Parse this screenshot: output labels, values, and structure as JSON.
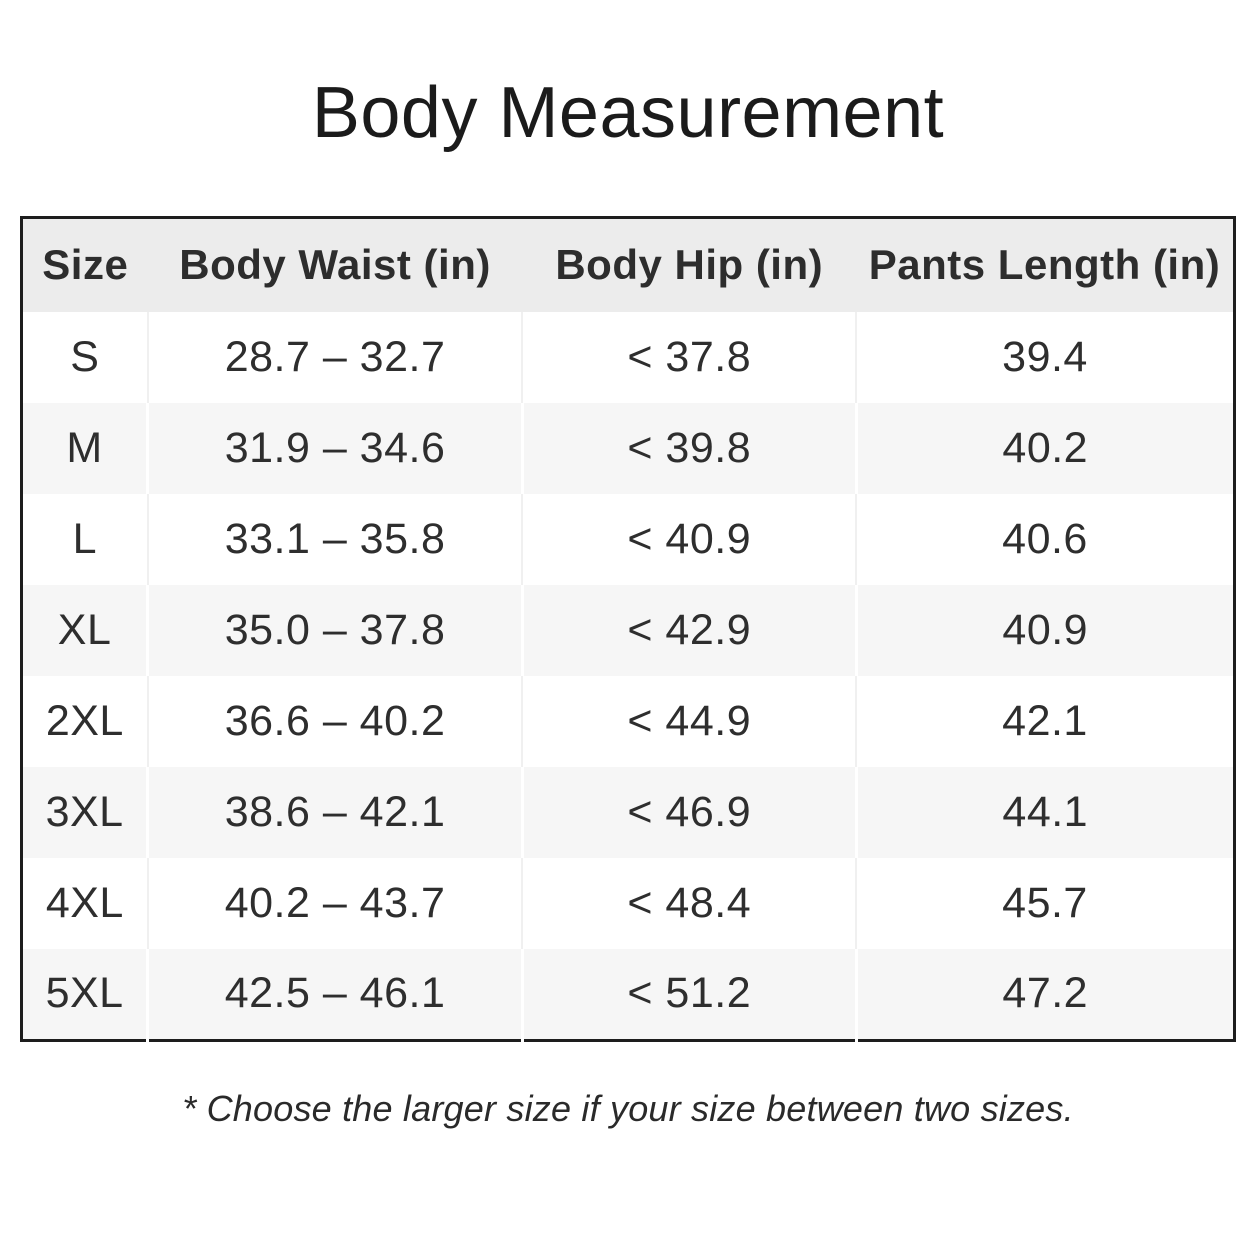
{
  "title": "Body Measurement",
  "table": {
    "headers": [
      "Size",
      "Body Waist (in)",
      "Body Hip (in)",
      "Pants Length (in)"
    ],
    "rows": [
      [
        "S",
        "28.7 – 32.7",
        "< 37.8",
        "39.4"
      ],
      [
        "M",
        "31.9 – 34.6",
        "< 39.8",
        "40.2"
      ],
      [
        "L",
        "33.1 – 35.8",
        "< 40.9",
        "40.6"
      ],
      [
        "XL",
        "35.0 – 37.8",
        "< 42.9",
        "40.9"
      ],
      [
        "2XL",
        "36.6 – 40.2",
        "< 44.9",
        "42.1"
      ],
      [
        "3XL",
        "38.6 – 42.1",
        "< 46.9",
        "44.1"
      ],
      [
        "4XL",
        "40.2 – 43.7",
        "< 48.4",
        "45.7"
      ],
      [
        "5XL",
        "42.5 – 46.1",
        "< 51.2",
        "47.2"
      ]
    ]
  },
  "footnote": "* Choose the larger size if your size between two sizes.",
  "colors": {
    "header_bg": "#ececec",
    "alt_row_bg": "#f6f6f6",
    "table_border": "#1d1d1d",
    "text": "#2e2e2e"
  }
}
